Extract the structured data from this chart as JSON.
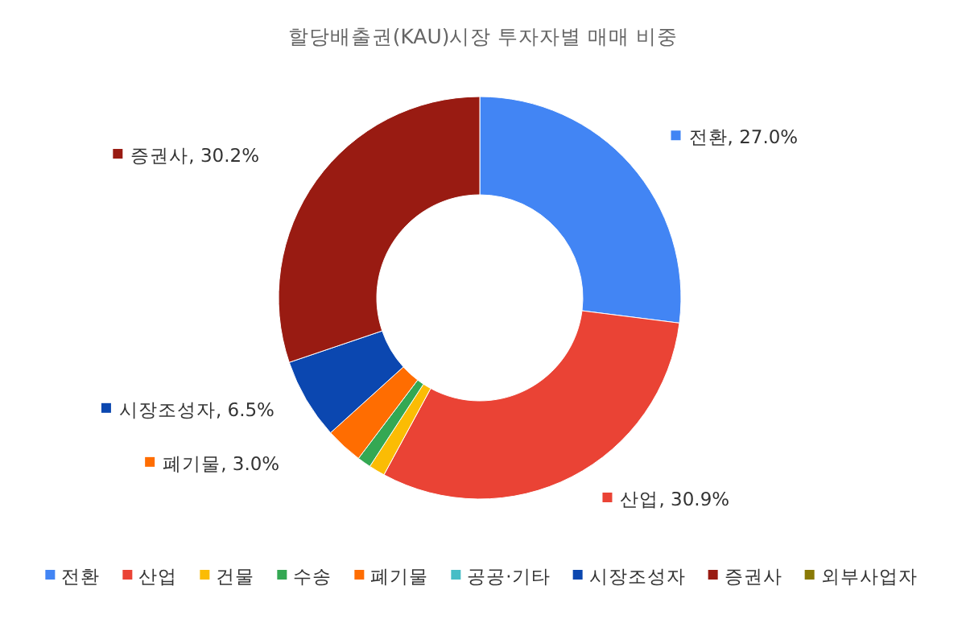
{
  "chart_data": {
    "type": "donut",
    "title": "할당배출권(KAU)시장 투자자별 매매 비중",
    "categories": [
      "전환",
      "산업",
      "건물",
      "수송",
      "폐기물",
      "공공·기타",
      "시장조성자",
      "증권사",
      "외부사업자"
    ],
    "values": [
      27.0,
      30.9,
      1.3,
      1.1,
      3.0,
      0,
      6.5,
      30.2,
      0
    ],
    "value_labels": [
      "전환, 27.0%",
      "산업, 30.9%",
      null,
      null,
      "폐기물, 3.0%",
      null,
      "시장조성자, 6.5%",
      "증권사, 30.2%",
      null
    ],
    "colors": [
      "#4285f4",
      "#ea4335",
      "#fbbc04",
      "#34a853",
      "#ff6d01",
      "#46bdc6",
      "#0b47b0",
      "#991b12",
      "#8a7a06"
    ],
    "legend": "bottom"
  }
}
